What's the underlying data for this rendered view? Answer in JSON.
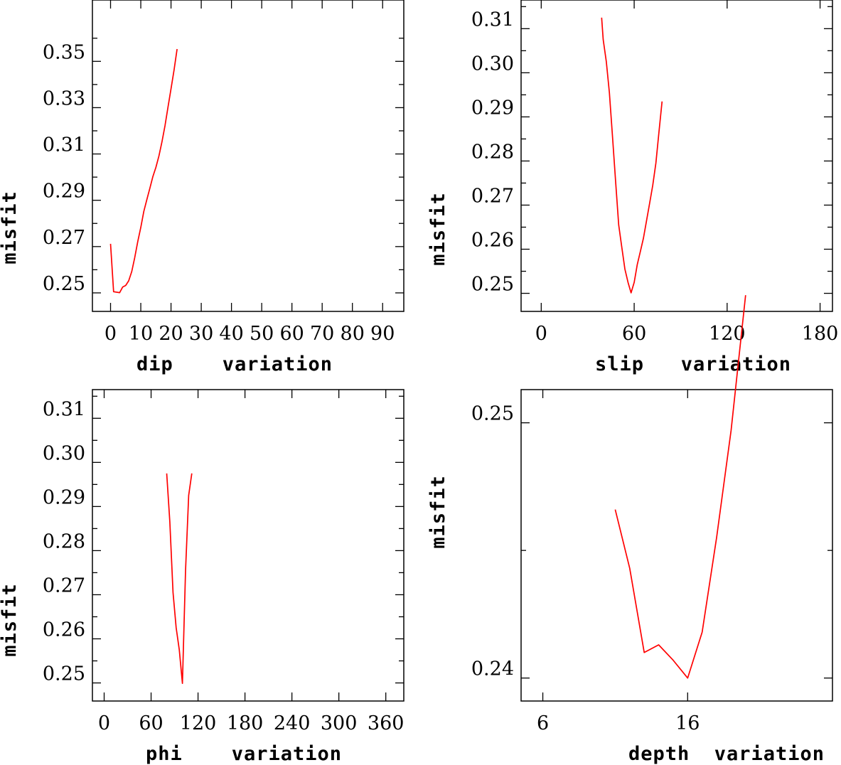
{
  "chart_data": [
    {
      "type": "line",
      "panel": "dip",
      "xlabel": "dip    variation",
      "ylabel": "misfit",
      "xlim": [
        -6,
        97
      ],
      "ylim": [
        0.242,
        0.3765
      ],
      "x_ticks_major": [
        0,
        10,
        20,
        30,
        40,
        50,
        60,
        70,
        80,
        90
      ],
      "x_tick_labels": [
        "0",
        "10",
        "20",
        "30",
        "40",
        "50",
        "60",
        "70",
        "80",
        "90"
      ],
      "y_ticks_major": [
        0.25,
        0.27,
        0.29,
        0.31,
        0.33,
        0.35
      ],
      "y_tick_labels": [
        "0.25",
        "0.27",
        "0.29",
        "0.31",
        "0.33",
        "0.35"
      ],
      "y_ticks_minor": [
        0.26,
        0.28,
        0.3,
        0.32,
        0.34,
        0.36
      ],
      "series": [
        {
          "name": "dip",
          "color": "#ff0000",
          "x": [
            0,
            1,
            3,
            4,
            5,
            6,
            7,
            8,
            9,
            10,
            11,
            12,
            13,
            14,
            15,
            16,
            17,
            18,
            19,
            20,
            21,
            22
          ],
          "y": [
            0.2712,
            0.2505,
            0.2501,
            0.2525,
            0.2532,
            0.2552,
            0.2592,
            0.2652,
            0.2722,
            0.2782,
            0.2852,
            0.2902,
            0.2952,
            0.3002,
            0.3042,
            0.3092,
            0.3152,
            0.3222,
            0.3302,
            0.3382,
            0.3462,
            0.3553
          ]
        }
      ]
    },
    {
      "type": "line",
      "panel": "slip",
      "xlabel": "slip   variation",
      "ylabel": "misfit",
      "xlim": [
        -13,
        188
      ],
      "ylim": [
        0.2459,
        0.3165
      ],
      "x_ticks_major": [
        0,
        60,
        120,
        180
      ],
      "x_tick_labels": [
        "0",
        "60",
        "120",
        "180"
      ],
      "y_ticks_major": [
        0.25,
        0.26,
        0.27,
        0.28,
        0.29,
        0.3,
        0.31
      ],
      "y_tick_labels": [
        "0.25",
        "0.26",
        "0.27",
        "0.28",
        "0.29",
        "0.30",
        "0.31"
      ],
      "y_ticks_minor": [
        0.255,
        0.265,
        0.275,
        0.285,
        0.295,
        0.305,
        0.315
      ],
      "series": [
        {
          "name": "slip",
          "color": "#ff0000",
          "x": [
            39,
            40,
            42,
            44,
            46,
            48,
            50,
            52,
            54,
            56,
            58,
            60,
            62,
            64,
            66,
            68,
            70,
            72,
            74,
            76,
            78
          ],
          "y": [
            0.3125,
            0.3075,
            0.3025,
            0.2955,
            0.2855,
            0.2755,
            0.2655,
            0.2605,
            0.2555,
            0.2525,
            0.2501,
            0.2525,
            0.2565,
            0.2595,
            0.2625,
            0.2665,
            0.2705,
            0.2745,
            0.2795,
            0.2865,
            0.2935
          ]
        }
      ]
    },
    {
      "type": "line",
      "panel": "phi",
      "xlabel": "phi    variation",
      "ylabel": "misfit",
      "xlim": [
        -15,
        383
      ],
      "ylim": [
        0.2459,
        0.3165
      ],
      "x_ticks_major": [
        0,
        60,
        120,
        180,
        240,
        300,
        360
      ],
      "x_tick_labels": [
        "0",
        "60",
        "120",
        "180",
        "240",
        "300",
        "360"
      ],
      "y_ticks_major": [
        0.25,
        0.26,
        0.27,
        0.28,
        0.29,
        0.3,
        0.31
      ],
      "y_tick_labels": [
        "0.25",
        "0.26",
        "0.27",
        "0.28",
        "0.29",
        "0.30",
        "0.31"
      ],
      "y_ticks_minor": [
        0.255,
        0.265,
        0.275,
        0.285,
        0.295,
        0.305,
        0.315
      ],
      "series": [
        {
          "name": "phi",
          "color": "#ff0000",
          "x": [
            80,
            84,
            88,
            92,
            96,
            100,
            104,
            108,
            112
          ],
          "y": [
            0.2975,
            0.2865,
            0.2705,
            0.2625,
            0.2575,
            0.2499,
            0.2755,
            0.2925,
            0.2975
          ]
        }
      ]
    },
    {
      "type": "line",
      "panel": "depth",
      "xlabel": "depth  variation",
      "ylabel": "misfit",
      "xlim": [
        4.5,
        26
      ],
      "ylim": [
        0.2391,
        0.2513
      ],
      "x_ticks_major": [
        6,
        16
      ],
      "x_tick_labels": [
        "6",
        "16"
      ],
      "y_ticks_major": [
        0.24,
        0.25
      ],
      "y_tick_labels": [
        "0.24",
        "0.25"
      ],
      "y_ticks_minor": [
        0.245
      ],
      "series": [
        {
          "name": "depth",
          "color": "#ff0000",
          "x": [
            11,
            12,
            13,
            14,
            15,
            16,
            17,
            18,
            19,
            20
          ],
          "y": [
            0.2466,
            0.2443,
            0.241,
            0.2413,
            0.2407,
            0.24,
            0.2418,
            0.2455,
            0.2497,
            0.255
          ]
        }
      ]
    }
  ]
}
